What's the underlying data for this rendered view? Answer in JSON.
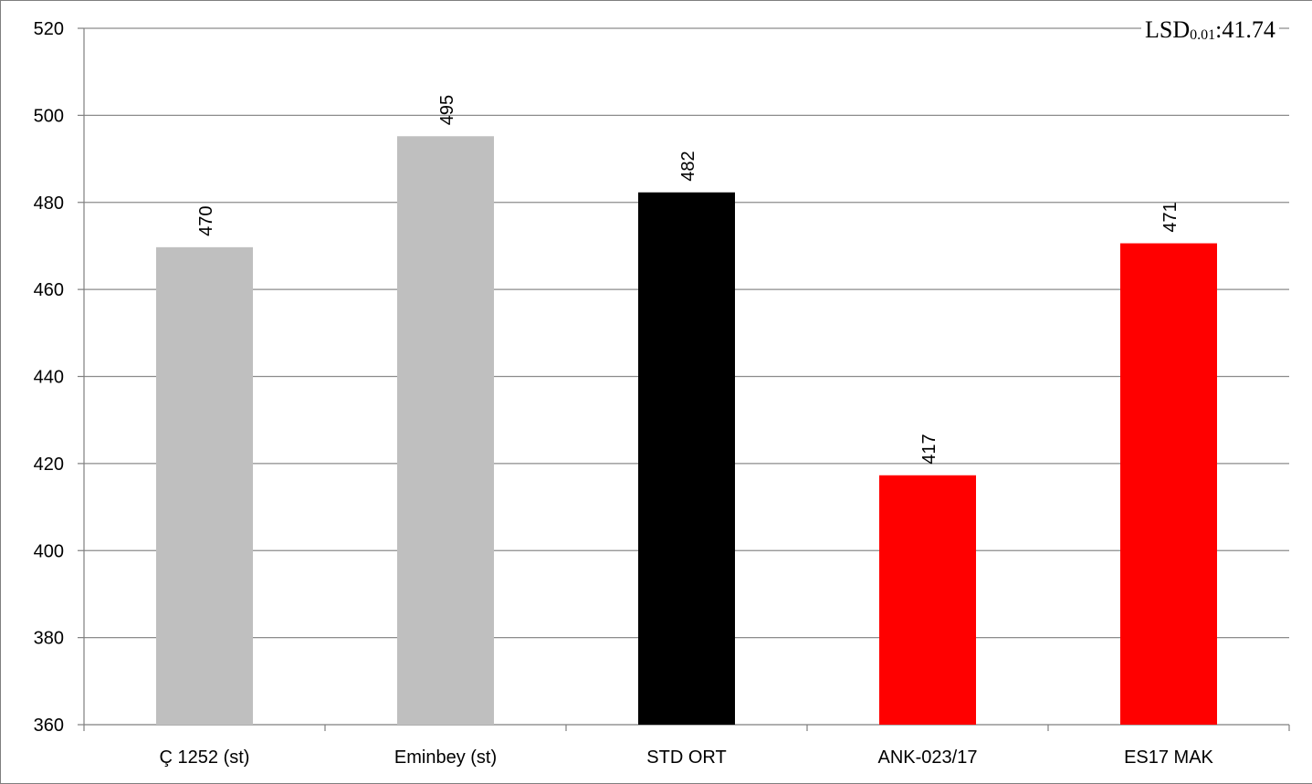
{
  "chart_data": {
    "type": "bar",
    "categories": [
      "Ç 1252 (st)",
      "Eminbey (st)",
      "STD ORT",
      "ANK-023/17",
      "ES17 MAK"
    ],
    "values": [
      470,
      495,
      482,
      417,
      471
    ],
    "bar_values_exact": [
      469.7,
      495.2,
      482.3,
      417.3,
      470.6
    ],
    "colors": [
      "#bfbfbf",
      "#bfbfbf",
      "#000000",
      "#ff0000",
      "#ff0000"
    ],
    "ylim": [
      360,
      520
    ],
    "yticks": [
      "360",
      "380",
      "400",
      "420",
      "440",
      "460",
      "480",
      "500",
      "520"
    ],
    "grid": true,
    "data_labels_rotated": true,
    "annotation": {
      "main": "LSD",
      "sub": "0.01",
      "value": ":41.74"
    }
  }
}
